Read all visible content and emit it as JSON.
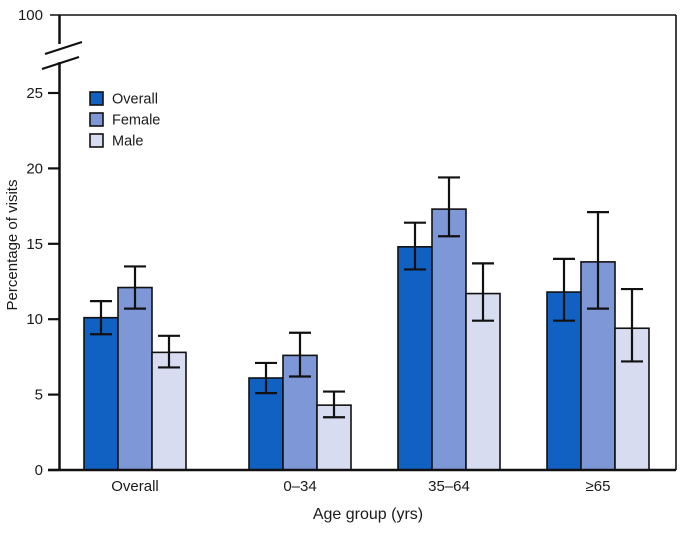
{
  "figure": {
    "background": "#ffffff",
    "text_color": "#1a1a1a"
  },
  "chart_data": {
    "type": "bar",
    "title": "",
    "xlabel": "Age group (yrs)",
    "ylabel": "Percentage of visits",
    "categories": [
      "Overall",
      "0–34",
      "35–64",
      "≥65"
    ],
    "series": [
      {
        "name": "Overall",
        "color": "#1161c3",
        "values": [
          10.1,
          6.1,
          14.8,
          11.8
        ],
        "ci_low": [
          9.0,
          5.1,
          13.3,
          9.9
        ],
        "ci_high": [
          11.2,
          7.1,
          16.4,
          14.0
        ]
      },
      {
        "name": "Female",
        "color": "#7e97d6",
        "values": [
          12.1,
          7.6,
          17.3,
          13.8
        ],
        "ci_low": [
          10.7,
          6.2,
          15.5,
          10.7
        ],
        "ci_high": [
          13.5,
          9.1,
          19.4,
          17.1
        ]
      },
      {
        "name": "Male",
        "color": "#d7dcf0",
        "values": [
          7.8,
          4.3,
          11.7,
          9.4
        ],
        "ci_low": [
          6.8,
          3.5,
          9.9,
          7.2
        ],
        "ci_high": [
          8.9,
          5.2,
          13.7,
          12.0
        ]
      }
    ],
    "error_bars": true,
    "y_axis": {
      "ticks": [
        0,
        5,
        10,
        15,
        20,
        25
      ],
      "break_tick": 100,
      "axis_break": true
    },
    "grid": false,
    "legend_position": "top-left",
    "axis_color": "#111111",
    "bar_border_color": "#111111",
    "error_bar_color": "#111111"
  }
}
